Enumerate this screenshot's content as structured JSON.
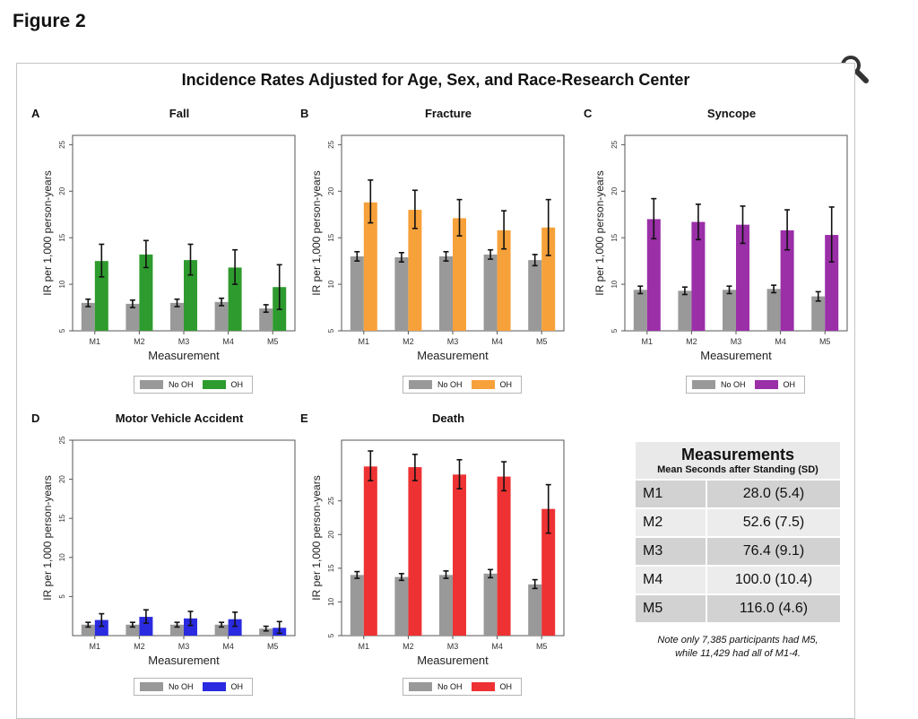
{
  "page": {
    "heading": "Figure 2",
    "zoom_icon": "magnifier-icon"
  },
  "figure": {
    "title": "Incidence Rates Adjusted for Age, Sex, and Race-Research Center",
    "legend": {
      "no_oh": "No OH",
      "oh": "OH",
      "no_oh_color": "#999999"
    },
    "table": {
      "title": "Measurements",
      "subtitle": "Mean Seconds after Standing (SD)",
      "rows": [
        {
          "key": "M1",
          "value": "28.0 (5.4)"
        },
        {
          "key": "M2",
          "value": "52.6 (7.5)"
        },
        {
          "key": "M3",
          "value": "76.4 (9.1)"
        },
        {
          "key": "M4",
          "value": "100.0 (10.4)"
        },
        {
          "key": "M5",
          "value": "116.0 (4.6)"
        }
      ],
      "note_line1": "Note only 7,385 participants had M5,",
      "note_line2": "while 11,429 had all of M1-4."
    }
  },
  "chart_data": [
    {
      "type": "bar",
      "letter": "A",
      "title": "Fall",
      "oh_color": "#2e9b2e",
      "xlabel": "Measurement",
      "ylabel": "IR per 1,000 person-years",
      "categories": [
        "M1",
        "M2",
        "M3",
        "M4",
        "M5"
      ],
      "ylim": [
        5,
        26
      ],
      "yticks": [
        5,
        10,
        15,
        20,
        25
      ],
      "series": [
        {
          "name": "No OH",
          "values": [
            8.0,
            7.9,
            8.0,
            8.1,
            7.4
          ],
          "lower": [
            7.6,
            7.5,
            7.6,
            7.7,
            7.0
          ],
          "upper": [
            8.4,
            8.3,
            8.4,
            8.5,
            7.8
          ]
        },
        {
          "name": "OH",
          "values": [
            12.5,
            13.2,
            12.6,
            11.8,
            9.7
          ],
          "lower": [
            10.8,
            11.8,
            11.0,
            10.0,
            7.3
          ],
          "upper": [
            14.3,
            14.7,
            14.3,
            13.7,
            12.1
          ]
        }
      ]
    },
    {
      "type": "bar",
      "letter": "B",
      "title": "Fracture",
      "oh_color": "#f7a13a",
      "xlabel": "Measurement",
      "ylabel": "IR per 1,000 person-years",
      "categories": [
        "M1",
        "M2",
        "M3",
        "M4",
        "M5"
      ],
      "ylim": [
        5,
        26
      ],
      "yticks": [
        5,
        10,
        15,
        20,
        25
      ],
      "series": [
        {
          "name": "No OH",
          "values": [
            13.0,
            12.9,
            13.0,
            13.2,
            12.6
          ],
          "lower": [
            12.5,
            12.4,
            12.5,
            12.7,
            12.0
          ],
          "upper": [
            13.5,
            13.4,
            13.5,
            13.7,
            13.2
          ]
        },
        {
          "name": "OH",
          "values": [
            18.8,
            18.0,
            17.1,
            15.8,
            16.1
          ],
          "lower": [
            16.6,
            16.0,
            15.2,
            13.8,
            13.1
          ],
          "upper": [
            21.2,
            20.1,
            19.1,
            17.9,
            19.1
          ]
        }
      ]
    },
    {
      "type": "bar",
      "letter": "C",
      "title": "Syncope",
      "oh_color": "#9a2fa8",
      "xlabel": "Measurement",
      "ylabel": "IR per 1,000 person-years",
      "categories": [
        "M1",
        "M2",
        "M3",
        "M4",
        "M5"
      ],
      "ylim": [
        5,
        26
      ],
      "yticks": [
        5,
        10,
        15,
        20,
        25
      ],
      "series": [
        {
          "name": "No OH",
          "values": [
            9.4,
            9.3,
            9.4,
            9.5,
            8.7
          ],
          "lower": [
            9.0,
            8.9,
            9.0,
            9.1,
            8.2
          ],
          "upper": [
            9.8,
            9.7,
            9.8,
            9.9,
            9.2
          ]
        },
        {
          "name": "OH",
          "values": [
            17.0,
            16.7,
            16.4,
            15.8,
            15.3
          ],
          "lower": [
            14.9,
            14.8,
            14.4,
            13.7,
            12.4
          ],
          "upper": [
            19.2,
            18.6,
            18.4,
            18.0,
            18.3
          ]
        }
      ]
    },
    {
      "type": "bar",
      "letter": "D",
      "title": "Motor Vehicle Accident",
      "oh_color": "#2a2ae0",
      "xlabel": "Measurement",
      "ylabel": "IR per 1,000 person-years",
      "categories": [
        "M1",
        "M2",
        "M3",
        "M4",
        "M5"
      ],
      "ylim": [
        0,
        25
      ],
      "yticks": [
        5,
        10,
        15,
        20,
        25
      ],
      "series": [
        {
          "name": "No OH",
          "values": [
            1.4,
            1.4,
            1.4,
            1.4,
            0.9
          ],
          "lower": [
            1.1,
            1.1,
            1.1,
            1.1,
            0.6
          ],
          "upper": [
            1.7,
            1.7,
            1.7,
            1.7,
            1.2
          ]
        },
        {
          "name": "OH",
          "values": [
            2.0,
            2.4,
            2.2,
            2.1,
            1.0
          ],
          "lower": [
            1.2,
            1.6,
            1.3,
            1.2,
            0.3
          ],
          "upper": [
            2.8,
            3.3,
            3.1,
            3.0,
            1.8
          ]
        }
      ]
    },
    {
      "type": "bar",
      "letter": "E",
      "title": "Death",
      "oh_color": "#ee3233",
      "xlabel": "Measurement",
      "ylabel": "IR per 1,000 person-years",
      "categories": [
        "M1",
        "M2",
        "M3",
        "M4",
        "M5"
      ],
      "ylim": [
        5,
        34
      ],
      "yticks": [
        5,
        10,
        15,
        20,
        25
      ],
      "series": [
        {
          "name": "No OH",
          "values": [
            14.0,
            13.7,
            14.0,
            14.2,
            12.6
          ],
          "lower": [
            13.5,
            13.2,
            13.5,
            13.6,
            12.0
          ],
          "upper": [
            14.5,
            14.2,
            14.6,
            14.8,
            13.3
          ]
        },
        {
          "name": "OH",
          "values": [
            30.1,
            30.0,
            28.9,
            28.6,
            23.8
          ],
          "lower": [
            28.0,
            28.0,
            26.8,
            26.5,
            20.2
          ],
          "upper": [
            32.4,
            31.9,
            31.1,
            30.8,
            27.4
          ]
        }
      ]
    }
  ]
}
